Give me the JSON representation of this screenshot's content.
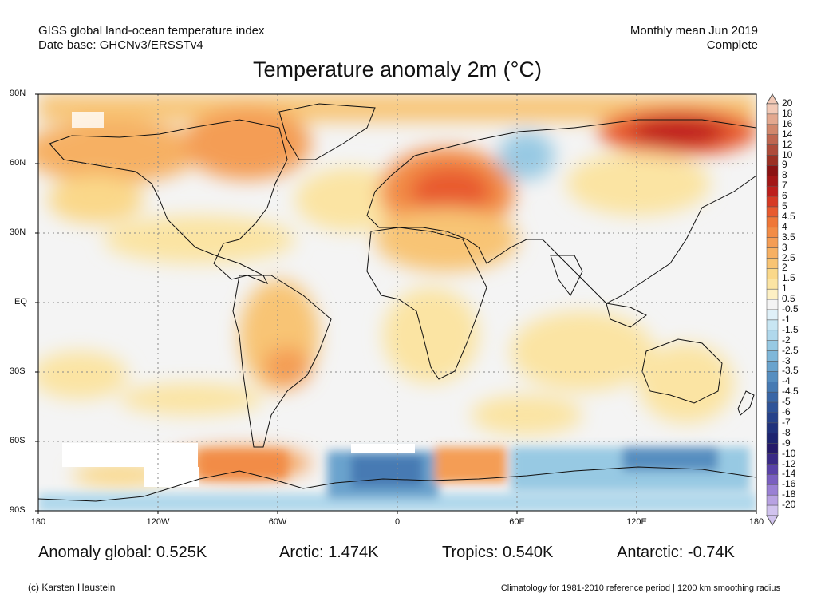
{
  "header": {
    "left_line1": "GISS global land-ocean temperature index",
    "left_line2": "Date base: GHCNv3/ERSSTv4",
    "right_line1": "Monthly mean Jun 2019",
    "right_line2": "Complete"
  },
  "title": "Temperature anomaly 2m (°C)",
  "map": {
    "lat_labels": [
      "90N",
      "60N",
      "30N",
      "EQ",
      "30S",
      "60S",
      "90S"
    ],
    "lon_labels": [
      "180",
      "120W",
      "60W",
      "0",
      "60E",
      "120E",
      "180"
    ]
  },
  "colorbar": {
    "labels": [
      "20",
      "18",
      "16",
      "14",
      "12",
      "10",
      "9",
      "8",
      "7",
      "6",
      "5",
      "4.5",
      "4",
      "3.5",
      "3",
      "2.5",
      "2",
      "1.5",
      "1",
      "0.5",
      "-0.5",
      "-1",
      "-1.5",
      "-2",
      "-2.5",
      "-3",
      "-3.5",
      "-4",
      "-4.5",
      "-5",
      "-6",
      "-7",
      "-8",
      "-9",
      "-10",
      "-12",
      "-14",
      "-16",
      "-18",
      "-20"
    ],
    "colors": [
      "#f2c9b6",
      "#e3a88f",
      "#d1876c",
      "#bf6650",
      "#ae4b3a",
      "#9c3023",
      "#8b1313",
      "#a31717",
      "#bd1f1c",
      "#d63a24",
      "#e85a2e",
      "#ef7738",
      "#f28c46",
      "#f49d55",
      "#f6b063",
      "#f8c474",
      "#fad88a",
      "#fbe4a3",
      "#fdf0c4",
      "#f4f4f4",
      "#dff0f8",
      "#c8e6f3",
      "#b0d8ec",
      "#97c9e3",
      "#7fb7d9",
      "#6aa3cd",
      "#568ec0",
      "#467ab3",
      "#3966a6",
      "#2e5398",
      "#26428a",
      "#20327c",
      "#1d2470",
      "#251a6a",
      "#3a2a86",
      "#5a42a8",
      "#7a5fc0",
      "#9a80d4",
      "#b8a2e2",
      "#d1c3ee"
    ]
  },
  "stats": {
    "global": "Anomaly global: 0.525K",
    "arctic": "Arctic: 1.474K",
    "tropics": "Tropics: 0.540K",
    "antarctic": "Antarctic: -0.74K"
  },
  "footer": {
    "left": "(c) Karsten Haustein",
    "right": "Climatology for 1981-2010 reference period | 1200 km smoothing radius"
  }
}
